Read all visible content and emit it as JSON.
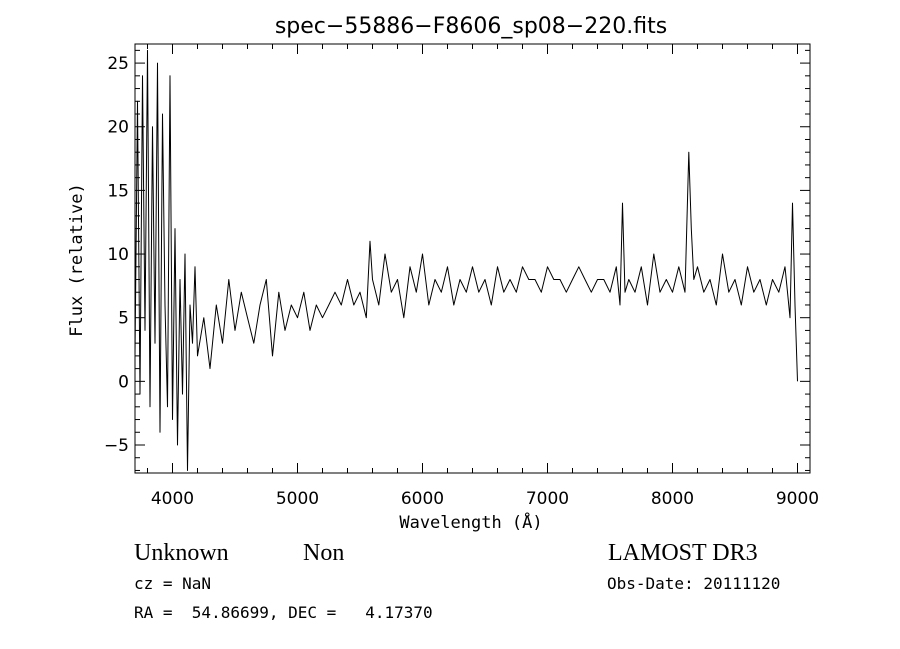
{
  "chart_data": {
    "type": "line",
    "title": "spec−55886−F8606_sp08−220.fits",
    "xlabel": "Wavelength (Å)",
    "ylabel": "Flux (relative)",
    "xlim": [
      3700,
      9100
    ],
    "ylim": [
      -7.2,
      26.5
    ],
    "xticks": [
      4000,
      5000,
      6000,
      7000,
      8000,
      9000
    ],
    "yticks": [
      -5,
      0,
      5,
      10,
      15,
      20,
      25
    ],
    "ytick_labels": [
      "−5",
      "0",
      "5",
      "10",
      "15",
      "20",
      "25"
    ],
    "grid": false,
    "legend": "none",
    "series": [
      {
        "name": "",
        "x": [
          3700,
          3720,
          3740,
          3760,
          3780,
          3800,
          3820,
          3840,
          3860,
          3880,
          3900,
          3920,
          3940,
          3960,
          3980,
          4000,
          4020,
          4040,
          4060,
          4080,
          4100,
          4120,
          4140,
          4160,
          4180,
          4200,
          4250,
          4300,
          4350,
          4400,
          4450,
          4500,
          4550,
          4600,
          4650,
          4700,
          4750,
          4800,
          4850,
          4900,
          4950,
          5000,
          5050,
          5100,
          5150,
          5200,
          5250,
          5300,
          5350,
          5400,
          5450,
          5500,
          5550,
          5580,
          5600,
          5650,
          5700,
          5750,
          5800,
          5850,
          5900,
          5950,
          6000,
          6050,
          6100,
          6150,
          6200,
          6250,
          6300,
          6350,
          6400,
          6450,
          6500,
          6550,
          6600,
          6650,
          6700,
          6750,
          6800,
          6850,
          6900,
          6950,
          7000,
          7050,
          7100,
          7150,
          7200,
          7250,
          7300,
          7350,
          7400,
          7450,
          7500,
          7550,
          7580,
          7600,
          7620,
          7650,
          7700,
          7750,
          7800,
          7850,
          7900,
          7950,
          8000,
          8050,
          8100,
          8130,
          8150,
          8170,
          8200,
          8250,
          8300,
          8350,
          8400,
          8450,
          8500,
          8550,
          8600,
          8650,
          8700,
          8750,
          8800,
          8850,
          8900,
          8940,
          8960,
          8980,
          9000
        ],
        "y": [
          2,
          22,
          -1,
          24,
          4,
          26,
          -2,
          20,
          3,
          25,
          -4,
          21,
          6,
          -2,
          24,
          -3,
          12,
          -5,
          8,
          -1,
          10,
          -7,
          6,
          3,
          9,
          2,
          5,
          1,
          6,
          3,
          8,
          4,
          7,
          5,
          3,
          6,
          8,
          2,
          7,
          4,
          6,
          5,
          7,
          4,
          6,
          5,
          6,
          7,
          6,
          8,
          6,
          7,
          5,
          11,
          8,
          6,
          10,
          7,
          8,
          5,
          9,
          7,
          10,
          6,
          8,
          7,
          9,
          6,
          8,
          7,
          9,
          7,
          8,
          6,
          9,
          7,
          8,
          7,
          9,
          8,
          8,
          7,
          9,
          8,
          8,
          7,
          8,
          9,
          8,
          7,
          8,
          8,
          7,
          9,
          6,
          14,
          7,
          8,
          7,
          9,
          6,
          10,
          7,
          8,
          7,
          9,
          7,
          18,
          12,
          8,
          9,
          7,
          8,
          6,
          10,
          7,
          8,
          6,
          9,
          7,
          8,
          6,
          8,
          7,
          9,
          5,
          14,
          6,
          0
        ]
      }
    ]
  },
  "info": {
    "object_class": "Unknown",
    "object_subclass": "Non",
    "survey": "LAMOST DR3",
    "cz": "cz = NaN",
    "obs_date": "Obs-Date: 20111120",
    "coords": "RA =  54.86699, DEC =   4.17370"
  },
  "colors": {
    "line": "#000000",
    "background": "#ffffff"
  }
}
